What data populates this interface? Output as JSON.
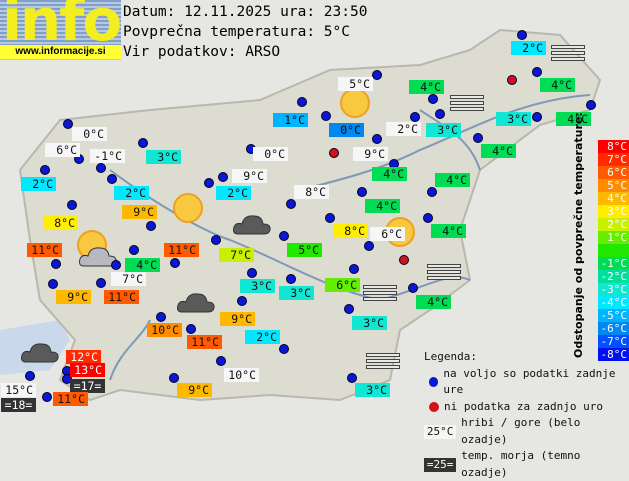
{
  "logo": {
    "text": "info",
    "url": "www.informacije.si"
  },
  "header": {
    "date_line": "Datum: 12.11.2025 ura: 23:50",
    "avg_line": "Povprečna temperatura: 5°C",
    "source_line": "Vir podatkov: ARSO"
  },
  "colors": {
    "8": "#ff0000",
    "7": "#ff2a00",
    "6": "#ff5a00",
    "5": "#ff8c00",
    "4": "#ffb800",
    "3": "#ffee00",
    "2": "#c8f000",
    "1": "#66ee00",
    "0": "#22e800",
    "-1": "#00dd55",
    "-2": "#00e09a",
    "-3": "#10e6d2",
    "-4": "#00e8ff",
    "-5": "#00b4ff",
    "-6": "#0088f0",
    "-7": "#0050ff",
    "-8": "#0010ee",
    "mountain": "#f6f6f6",
    "sea": "#333333"
  },
  "stations": [
    {
      "t": "0°C",
      "c": "mountain"
    },
    {
      "t": "6°C",
      "c": "mountain"
    },
    {
      "t": "-1°C",
      "c": "mountain"
    },
    {
      "t": "2°C",
      "c": "-4"
    },
    {
      "t": "3°C",
      "c": "-3"
    },
    {
      "t": "2°C",
      "c": "-4"
    },
    {
      "t": "9°C",
      "c": "4"
    },
    {
      "t": "8°C",
      "c": "3"
    },
    {
      "t": "11°C",
      "c": "6"
    },
    {
      "t": "9°C",
      "c": "4"
    },
    {
      "t": "7°C",
      "c": "mountain"
    },
    {
      "t": "4°C",
      "c": "-1"
    },
    {
      "t": "11°C",
      "c": "6"
    },
    {
      "t": "11°C",
      "c": "6"
    },
    {
      "t": "2°C",
      "c": "-4"
    },
    {
      "t": "9°C",
      "c": "mountain"
    },
    {
      "t": "0°C",
      "c": "mountain"
    },
    {
      "t": "7°C",
      "c": "2"
    },
    {
      "t": "8°C",
      "c": "mountain"
    },
    {
      "t": "1°C",
      "c": "-5"
    },
    {
      "t": "0°C",
      "c": "-6"
    },
    {
      "t": "5°C",
      "c": "mountain"
    },
    {
      "t": "9°C",
      "c": "mountain"
    },
    {
      "t": "2°C",
      "c": "mountain"
    },
    {
      "t": "3°C",
      "c": "-3"
    },
    {
      "t": "4°C",
      "c": "-1"
    },
    {
      "t": "4°C",
      "c": "-1"
    },
    {
      "t": "4°C",
      "c": "-1"
    },
    {
      "t": "4°C",
      "c": "-1"
    },
    {
      "t": "4°C",
      "c": "-1"
    },
    {
      "t": "2°C",
      "c": "-4"
    },
    {
      "t": "4°C",
      "c": "-1"
    },
    {
      "t": "3°C",
      "c": "-3"
    },
    {
      "t": "4°C",
      "c": "-1"
    },
    {
      "t": "5°C",
      "c": "0"
    },
    {
      "t": "8°C",
      "c": "3"
    },
    {
      "t": "6°C",
      "c": "mountain"
    },
    {
      "t": "4°C",
      "c": "-1"
    },
    {
      "t": "3°C",
      "c": "-3"
    },
    {
      "t": "3°C",
      "c": "-3"
    },
    {
      "t": "6°C",
      "c": "1"
    },
    {
      "t": "4°C",
      "c": "-1"
    },
    {
      "t": "3°C",
      "c": "-3"
    },
    {
      "t": "9°C",
      "c": "4"
    },
    {
      "t": "2°C",
      "c": "-4"
    },
    {
      "t": "10°C",
      "c": "5"
    },
    {
      "t": "11°C",
      "c": "6"
    },
    {
      "t": "10°C",
      "c": "mountain"
    },
    {
      "t": "9°C",
      "c": "4"
    },
    {
      "t": "3°C",
      "c": "-3"
    },
    {
      "t": "12°C",
      "c": "7"
    },
    {
      "t": "13°C",
      "c": "8"
    },
    {
      "t": "=17=",
      "c": "sea"
    },
    {
      "t": "15°C",
      "c": "mountain"
    },
    {
      "t": "=18=",
      "c": "sea"
    },
    {
      "t": "11°C",
      "c": "6"
    }
  ],
  "scale": {
    "title": "Odstopanje od povprečne temperature:",
    "labels": [
      "8°C",
      "7°C",
      "6°C",
      "5°C",
      "4°C",
      "3°C",
      "2°C",
      "1°C",
      "",
      "-1°C",
      "-2°C",
      "-3°C",
      "-4°C",
      "-5°C",
      "-6°C",
      "-7°C",
      "-8°C"
    ],
    "keys": [
      "8",
      "7",
      "6",
      "5",
      "4",
      "3",
      "2",
      "1",
      "0",
      "-1",
      "-2",
      "-3",
      "-4",
      "-5",
      "-6",
      "-7",
      "-8"
    ]
  },
  "legend": {
    "title": "Legenda:",
    "ok": "na voljo so podatki zadnje ure",
    "missing": "ni podatka za zadnjo uro",
    "mountain_sample": "25°C",
    "mountain": "hribi / gore (belo ozadje)",
    "sea_sample": "=25=",
    "sea": "temp. morja (temno ozadje)"
  },
  "missing_stations": 3
}
